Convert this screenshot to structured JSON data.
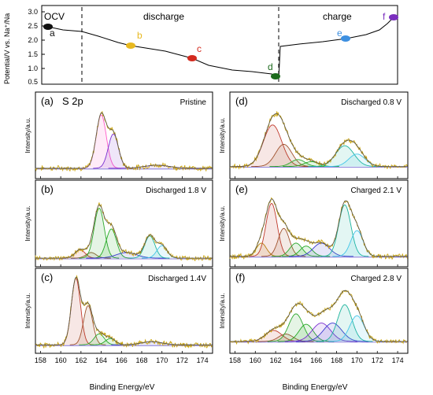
{
  "figure": {
    "top_chart": {
      "ylabel": "Potential/V vs. Na⁺/Na",
      "yticks": [
        "0.5",
        "1.0",
        "1.5",
        "2.0",
        "2.5",
        "3.0"
      ],
      "region_labels": [
        "OCV",
        "discharge",
        "charge"
      ],
      "points": [
        {
          "label": "a",
          "color": "#111111"
        },
        {
          "label": "b",
          "color": "#e8b920"
        },
        {
          "label": "c",
          "color": "#d42a1e"
        },
        {
          "label": "d",
          "color": "#1d6b1d"
        },
        {
          "label": "e",
          "color": "#3d8fe0"
        },
        {
          "label": "f",
          "color": "#7b2fbe"
        }
      ]
    },
    "panels": [
      {
        "tag": "(a)",
        "title": "S 2p",
        "state": "Pristine"
      },
      {
        "tag": "(b)",
        "state": "Discharged 1.8 V"
      },
      {
        "tag": "(c)",
        "state": "Discharged 1.4V"
      },
      {
        "tag": "(d)",
        "state": "Discharged 0.8 V"
      },
      {
        "tag": "(e)",
        "state": "Charged 2.1 V"
      },
      {
        "tag": "(f)",
        "state": "Charged 2.8 V"
      }
    ],
    "xps_ylabel": "Intensity/a.u.",
    "xps_xlabel": "Binding Energy/eV",
    "xps_xticks": [
      "158",
      "160",
      "162",
      "164",
      "166",
      "168",
      "170",
      "172",
      "174"
    ]
  },
  "chart_data": [
    {
      "type": "line",
      "ylabel": "Potential/V vs. Na⁺/Na",
      "ylim": [
        0.5,
        3.0
      ],
      "series": [
        {
          "values": [
            2.5,
            2.34,
            2.3,
            2.22,
            1.9,
            1.82,
            1.7,
            1.4,
            1.25,
            1.1,
            0.98,
            0.92,
            0.85,
            0.8
          ]
        },
        {
          "values": [
            1.8,
            1.86,
            1.92,
            1.97,
            2.05,
            2.12,
            2.3,
            2.55,
            2.8
          ]
        }
      ],
      "points": [
        {
          "label": "a",
          "y": 2.5
        },
        {
          "label": "b",
          "y": 1.8
        },
        {
          "label": "c",
          "y": 1.4
        },
        {
          "label": "d",
          "y": 0.8
        },
        {
          "label": "e",
          "y": 2.1
        },
        {
          "label": "f",
          "y": 2.8
        }
      ]
    },
    {
      "type": "line",
      "xlabel": "Binding Energy/eV",
      "ylabel": "Intensity/a.u.",
      "xlim": [
        157.5,
        175
      ],
      "panels": [
        {
          "state": "Pristine",
          "peaks": [
            {
              "center": 164.0,
              "height": 0.7,
              "width": 0.5,
              "color": "#ff5bc8"
            },
            {
              "center": 165.2,
              "height": 0.45,
              "width": 0.5,
              "color": "#7b2fd1"
            },
            {
              "center": 169.5,
              "height": 0.04,
              "width": 1.2,
              "color": "#7b2fd1"
            }
          ]
        },
        {
          "state": "Discharged 1.8 V",
          "peaks": [
            {
              "center": 161.9,
              "height": 0.12,
              "width": 0.5,
              "color": "#c0392b"
            },
            {
              "center": 163.0,
              "height": 0.08,
              "width": 0.5,
              "color": "#8a5a2b"
            },
            {
              "center": 163.8,
              "height": 0.72,
              "width": 0.5,
              "color": "#2ca82c"
            },
            {
              "center": 165.0,
              "height": 0.42,
              "width": 0.5,
              "color": "#22aa22"
            },
            {
              "center": 166.5,
              "height": 0.08,
              "width": 1.0,
              "color": "#3a3ad0"
            },
            {
              "center": 168.8,
              "height": 0.32,
              "width": 0.5,
              "color": "#1bb39c"
            },
            {
              "center": 170.0,
              "height": 0.18,
              "width": 0.5,
              "color": "#43c6e8"
            }
          ]
        },
        {
          "state": "Discharged 1.4V",
          "peaks": [
            {
              "center": 161.5,
              "height": 0.85,
              "width": 0.45,
              "color": "#c0392b"
            },
            {
              "center": 162.7,
              "height": 0.5,
              "width": 0.45,
              "color": "#a0522d"
            },
            {
              "center": 163.8,
              "height": 0.14,
              "width": 0.5,
              "color": "#2ca82c"
            },
            {
              "center": 164.9,
              "height": 0.08,
              "width": 0.5,
              "color": "#22aa22"
            },
            {
              "center": 169.0,
              "height": 0.04,
              "width": 1.0,
              "color": "#3a3ad0"
            }
          ]
        },
        {
          "state": "Discharged 0.8 V",
          "peaks": [
            {
              "center": 161.7,
              "height": 0.6,
              "width": 0.9,
              "color": "#c0392b"
            },
            {
              "center": 162.8,
              "height": 0.32,
              "width": 0.8,
              "color": "#a0522d"
            },
            {
              "center": 164.2,
              "height": 0.1,
              "width": 0.7,
              "color": "#2ca82c"
            },
            {
              "center": 165.5,
              "height": 0.07,
              "width": 0.7,
              "color": "#22aa22"
            },
            {
              "center": 168.8,
              "height": 0.3,
              "width": 0.9,
              "color": "#1bb39c"
            },
            {
              "center": 170.0,
              "height": 0.18,
              "width": 0.8,
              "color": "#43c6e8"
            }
          ]
        },
        {
          "state": "Charged 2.1 V",
          "peaks": [
            {
              "center": 160.6,
              "height": 0.18,
              "width": 0.5,
              "color": "#b8860b"
            },
            {
              "center": 161.6,
              "height": 0.72,
              "width": 0.55,
              "color": "#c0392b"
            },
            {
              "center": 162.8,
              "height": 0.38,
              "width": 0.55,
              "color": "#a0522d"
            },
            {
              "center": 164.0,
              "height": 0.18,
              "width": 0.6,
              "color": "#2ca82c"
            },
            {
              "center": 165.0,
              "height": 0.14,
              "width": 0.6,
              "color": "#22aa22"
            },
            {
              "center": 166.5,
              "height": 0.18,
              "width": 0.8,
              "color": "#3a3ad0"
            },
            {
              "center": 168.8,
              "height": 0.7,
              "width": 0.6,
              "color": "#1bb39c"
            },
            {
              "center": 170.0,
              "height": 0.35,
              "width": 0.6,
              "color": "#43c6e8"
            }
          ]
        },
        {
          "state": "Charged 2.8 V",
          "peaks": [
            {
              "center": 161.8,
              "height": 0.18,
              "width": 0.8,
              "color": "#c0392b"
            },
            {
              "center": 163.0,
              "height": 0.12,
              "width": 0.7,
              "color": "#a0522d"
            },
            {
              "center": 164.0,
              "height": 0.45,
              "width": 0.7,
              "color": "#2ca82c"
            },
            {
              "center": 165.0,
              "height": 0.28,
              "width": 0.7,
              "color": "#22aa22"
            },
            {
              "center": 166.5,
              "height": 0.3,
              "width": 0.9,
              "color": "#7b2fd1"
            },
            {
              "center": 167.6,
              "height": 0.3,
              "width": 0.9,
              "color": "#3a3ad0"
            },
            {
              "center": 168.8,
              "height": 0.6,
              "width": 0.7,
              "color": "#1bb39c"
            },
            {
              "center": 170.0,
              "height": 0.42,
              "width": 0.7,
              "color": "#43c6e8"
            }
          ]
        }
      ]
    }
  ]
}
